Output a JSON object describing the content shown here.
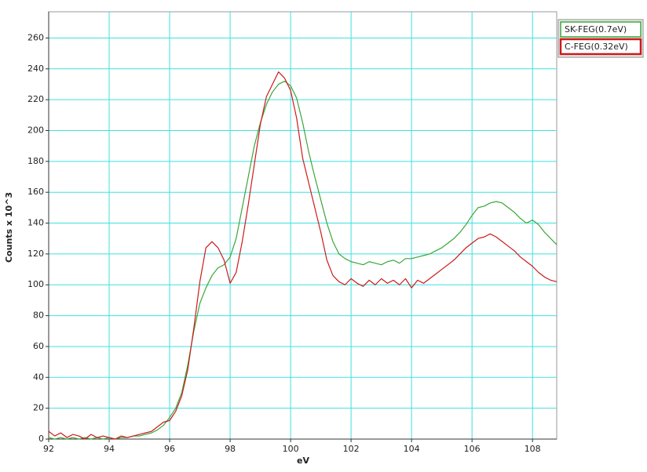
{
  "chart_data": {
    "type": "line",
    "xlabel": "eV",
    "ylabel": "Counts x 10^3",
    "x": [
      92.0,
      92.2,
      92.4,
      92.6,
      92.8,
      93.0,
      93.2,
      93.4,
      93.6,
      93.8,
      94.0,
      94.2,
      94.4,
      94.6,
      94.8,
      95.0,
      95.2,
      95.4,
      95.6,
      95.8,
      96.0,
      96.2,
      96.4,
      96.6,
      96.8,
      97.0,
      97.2,
      97.4,
      97.6,
      97.8,
      98.0,
      98.2,
      98.4,
      98.6,
      98.8,
      99.0,
      99.2,
      99.4,
      99.6,
      99.8,
      100.0,
      100.2,
      100.4,
      100.6,
      100.8,
      101.0,
      101.2,
      101.4,
      101.6,
      101.8,
      102.0,
      102.2,
      102.4,
      102.6,
      102.8,
      103.0,
      103.2,
      103.4,
      103.6,
      103.8,
      104.0,
      104.2,
      104.4,
      104.6,
      104.8,
      105.0,
      105.2,
      105.4,
      105.6,
      105.8,
      106.0,
      106.2,
      106.4,
      106.6,
      106.8,
      107.0,
      107.2,
      107.4,
      107.6,
      107.8,
      108.0,
      108.2,
      108.4,
      108.6,
      108.8
    ],
    "series": [
      {
        "name": "SK-FEG(0.7eV)",
        "color": "#3aa63a",
        "values": [
          1,
          0,
          1,
          0,
          1,
          0,
          1,
          0,
          1,
          0,
          1,
          0,
          1,
          1,
          2,
          2,
          3,
          4,
          6,
          9,
          14,
          20,
          30,
          48,
          70,
          88,
          98,
          106,
          111,
          113,
          118,
          130,
          150,
          170,
          190,
          205,
          217,
          225,
          230,
          232,
          229,
          221,
          205,
          186,
          170,
          155,
          140,
          128,
          120,
          117,
          115,
          114,
          113,
          115,
          114,
          113,
          115,
          116,
          114,
          117,
          117,
          118,
          119,
          120,
          122,
          124,
          127,
          130,
          134,
          139,
          145,
          150,
          151,
          153,
          154,
          153,
          150,
          147,
          143,
          140,
          142,
          139,
          134,
          130,
          126
        ]
      },
      {
        "name": "C-FEG(0.32eV)",
        "color": "#cc1a1a",
        "values": [
          5,
          2,
          4,
          1,
          3,
          2,
          0,
          3,
          1,
          2,
          1,
          0,
          2,
          1,
          2,
          3,
          4,
          5,
          8,
          11,
          12,
          18,
          28,
          45,
          72,
          102,
          124,
          128,
          124,
          116,
          101,
          108,
          128,
          152,
          178,
          204,
          222,
          230,
          238,
          234,
          226,
          208,
          182,
          166,
          150,
          134,
          116,
          106,
          102,
          100,
          104,
          101,
          99,
          103,
          100,
          104,
          101,
          103,
          100,
          104,
          98,
          103,
          101,
          104,
          107,
          110,
          113,
          116,
          120,
          124,
          127,
          130,
          131,
          133,
          131,
          128,
          125,
          122,
          118,
          115,
          112,
          108,
          105,
          103,
          102
        ]
      }
    ],
    "xlim": [
      92,
      108.8
    ],
    "ylim": [
      0,
      277
    ],
    "xticks": [
      92,
      94,
      96,
      98,
      100,
      102,
      104,
      106,
      108
    ],
    "yticks": [
      0,
      20,
      40,
      60,
      80,
      100,
      120,
      140,
      160,
      180,
      200,
      220,
      240,
      260
    ],
    "grid": true,
    "legend": "outside-top-right"
  }
}
